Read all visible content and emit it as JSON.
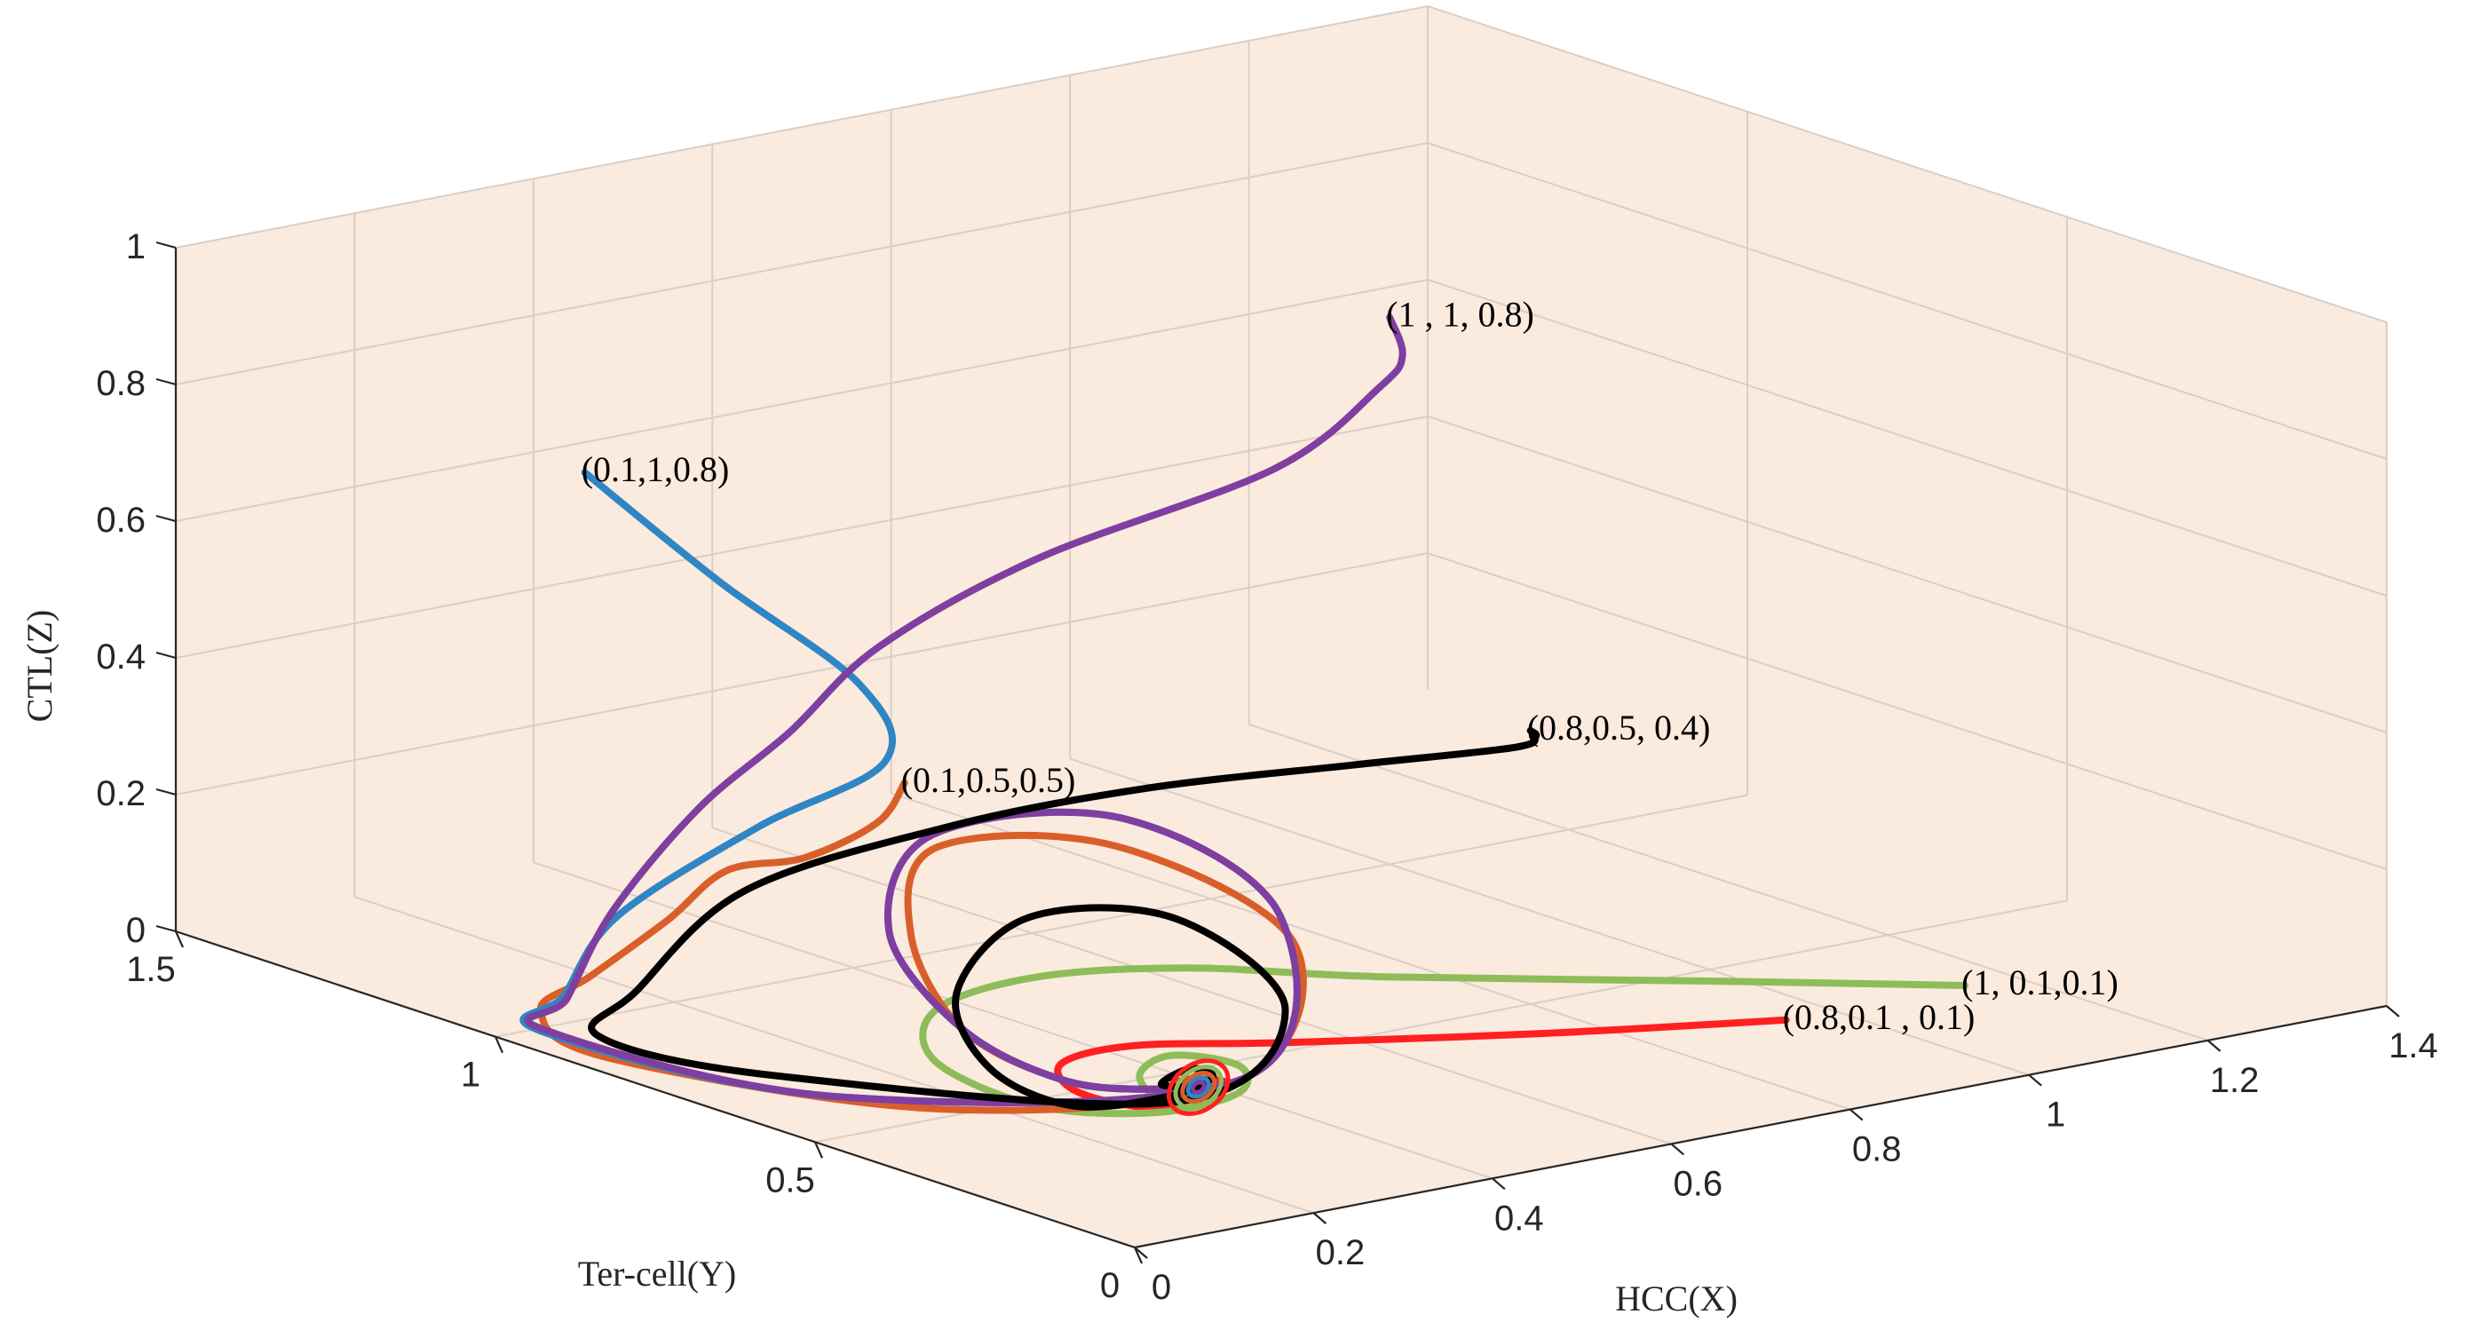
{
  "chart_data": {
    "type": "line",
    "subtype": "3d-phase-trajectories",
    "view": "3d-box",
    "title": "",
    "xlabel": "HCC(X)",
    "ylabel": "Ter-cell(Y)",
    "zlabel": "CTL(Z)",
    "xlim": [
      0,
      1.4
    ],
    "ylim": [
      0,
      1.5
    ],
    "zlim": [
      0,
      1
    ],
    "xticks": [
      0,
      0.2,
      0.4,
      0.6,
      0.8,
      1,
      1.2,
      1.4
    ],
    "xtick_labels": [
      "0",
      "0.2",
      "0.4",
      "0.6",
      "0.8",
      "1",
      "1.2",
      "1.4"
    ],
    "yticks": [
      0,
      0.5,
      1,
      1.5
    ],
    "ytick_labels": [
      "0",
      "0.5",
      "1",
      "1.5"
    ],
    "zticks": [
      0,
      0.2,
      0.4,
      0.6,
      0.8,
      1
    ],
    "ztick_labels": [
      "0",
      "0.2",
      "0.4",
      "0.6",
      "0.8",
      "1"
    ],
    "grid": true,
    "background": "#fbeade",
    "equilibrium": {
      "x": 0.3,
      "y": 0.32,
      "z": 0.06
    },
    "series": [
      {
        "name": "(0.8,0.1 , 0.1)",
        "color": "#ff2020",
        "initial": [
          0.8,
          0.1,
          0.1
        ],
        "points": [
          [
            0.8,
            0.1,
            0.1
          ],
          [
            0.6,
            0.2,
            0.1
          ],
          [
            0.4,
            0.32,
            0.1
          ],
          [
            0.3,
            0.42,
            0.09
          ],
          [
            0.24,
            0.45,
            0.07
          ],
          [
            0.22,
            0.4,
            0.05
          ],
          [
            0.25,
            0.33,
            0.04
          ],
          [
            0.3,
            0.3,
            0.05
          ],
          [
            0.33,
            0.32,
            0.06
          ],
          [
            0.31,
            0.35,
            0.06
          ],
          [
            0.29,
            0.34,
            0.06
          ],
          [
            0.3,
            0.32,
            0.06
          ]
        ]
      },
      {
        "name": "(1, 0.1,0.1)",
        "color": "#8fbc5a",
        "initial": [
          1,
          0.1,
          0.1
        ],
        "points": [
          [
            1,
            0.1,
            0.1
          ],
          [
            0.8,
            0.22,
            0.12
          ],
          [
            0.55,
            0.38,
            0.14
          ],
          [
            0.4,
            0.48,
            0.16
          ],
          [
            0.3,
            0.58,
            0.14
          ],
          [
            0.22,
            0.62,
            0.1
          ],
          [
            0.17,
            0.55,
            0.06
          ],
          [
            0.19,
            0.42,
            0.03
          ],
          [
            0.26,
            0.33,
            0.03
          ],
          [
            0.33,
            0.3,
            0.05
          ],
          [
            0.36,
            0.34,
            0.07
          ],
          [
            0.32,
            0.39,
            0.08
          ],
          [
            0.27,
            0.37,
            0.07
          ],
          [
            0.26,
            0.32,
            0.05
          ],
          [
            0.3,
            0.3,
            0.05
          ],
          [
            0.32,
            0.33,
            0.06
          ],
          [
            0.3,
            0.32,
            0.06
          ]
        ]
      },
      {
        "name": "(0.1,0.5,0.5)",
        "color": "#d95f2a",
        "initial": [
          0.1,
          0.5,
          0.5
        ],
        "points": [
          [
            0.1,
            0.5,
            0.5
          ],
          [
            0.07,
            0.5,
            0.45
          ],
          [
            0.06,
            0.6,
            0.37
          ],
          [
            0.08,
            0.75,
            0.3
          ],
          [
            0.05,
            0.8,
            0.22
          ],
          [
            0.02,
            0.88,
            0.12
          ],
          [
            0.015,
            0.95,
            0.05
          ],
          [
            0.02,
            0.85,
            0.01
          ],
          [
            0.15,
            0.5,
            0.01
          ],
          [
            0.35,
            0.32,
            0.06
          ],
          [
            0.5,
            0.45,
            0.18
          ],
          [
            0.48,
            0.7,
            0.25
          ],
          [
            0.35,
            0.8,
            0.25
          ],
          [
            0.25,
            0.7,
            0.18
          ],
          [
            0.2,
            0.55,
            0.1
          ],
          [
            0.22,
            0.42,
            0.06
          ],
          [
            0.28,
            0.36,
            0.05
          ],
          [
            0.32,
            0.34,
            0.06
          ],
          [
            0.3,
            0.32,
            0.06
          ]
        ]
      },
      {
        "name": "(0.1,1,0.8)",
        "color": "#2f86c4",
        "initial": [
          0.1,
          1,
          0.8
        ],
        "points": [
          [
            0.1,
            1,
            0.8
          ],
          [
            0.18,
            0.9,
            0.65
          ],
          [
            0.25,
            0.78,
            0.52
          ],
          [
            0.25,
            0.74,
            0.42
          ],
          [
            0.15,
            0.8,
            0.33
          ],
          [
            0.05,
            0.88,
            0.2
          ],
          [
            0.02,
            0.92,
            0.08
          ],
          [
            0.015,
            0.95,
            0.02
          ],
          [
            0.1,
            0.6,
            0.01
          ],
          [
            0.35,
            0.32,
            0.06
          ],
          [
            0.52,
            0.5,
            0.2
          ],
          [
            0.5,
            0.72,
            0.28
          ],
          [
            0.36,
            0.82,
            0.26
          ],
          [
            0.24,
            0.72,
            0.18
          ],
          [
            0.2,
            0.55,
            0.1
          ],
          [
            0.22,
            0.42,
            0.06
          ],
          [
            0.28,
            0.36,
            0.05
          ],
          [
            0.32,
            0.34,
            0.06
          ],
          [
            0.3,
            0.32,
            0.06
          ]
        ]
      },
      {
        "name": "(1 , 1, 0.8)",
        "color": "#7e3fa0",
        "initial": [
          1,
          1,
          0.8
        ],
        "points": [
          [
            1,
            1,
            0.8
          ],
          [
            1.0,
            0.98,
            0.75
          ],
          [
            0.96,
            0.96,
            0.72
          ],
          [
            0.8,
            0.9,
            0.66
          ],
          [
            0.5,
            0.85,
            0.62
          ],
          [
            0.3,
            0.82,
            0.55
          ],
          [
            0.2,
            0.82,
            0.45
          ],
          [
            0.12,
            0.85,
            0.35
          ],
          [
            0.06,
            0.9,
            0.2
          ],
          [
            0.03,
            0.93,
            0.07
          ],
          [
            0.02,
            0.95,
            0.02
          ],
          [
            0.1,
            0.6,
            0.01
          ],
          [
            0.35,
            0.32,
            0.06
          ],
          [
            0.52,
            0.5,
            0.2
          ],
          [
            0.5,
            0.72,
            0.28
          ],
          [
            0.36,
            0.82,
            0.26
          ],
          [
            0.24,
            0.72,
            0.18
          ],
          [
            0.2,
            0.55,
            0.1
          ],
          [
            0.22,
            0.42,
            0.06
          ],
          [
            0.28,
            0.36,
            0.05
          ],
          [
            0.32,
            0.34,
            0.06
          ],
          [
            0.3,
            0.32,
            0.06
          ]
        ]
      },
      {
        "name": "(0.8,0.5, 0.4)",
        "color": "#000000",
        "initial": [
          0.8,
          0.5,
          0.4
        ],
        "points": [
          [
            0.8,
            0.5,
            0.4
          ],
          [
            0.82,
            0.52,
            0.38
          ],
          [
            0.78,
            0.5,
            0.38
          ],
          [
            0.6,
            0.5,
            0.4
          ],
          [
            0.4,
            0.55,
            0.4
          ],
          [
            0.25,
            0.65,
            0.35
          ],
          [
            0.12,
            0.78,
            0.25
          ],
          [
            0.05,
            0.85,
            0.1
          ],
          [
            0.03,
            0.88,
            0.03
          ],
          [
            0.1,
            0.7,
            0.01
          ],
          [
            0.3,
            0.35,
            0.03
          ],
          [
            0.44,
            0.38,
            0.12
          ],
          [
            0.44,
            0.55,
            0.2
          ],
          [
            0.34,
            0.64,
            0.2
          ],
          [
            0.23,
            0.6,
            0.13
          ],
          [
            0.18,
            0.48,
            0.07
          ],
          [
            0.2,
            0.38,
            0.04
          ],
          [
            0.27,
            0.33,
            0.05
          ],
          [
            0.33,
            0.34,
            0.06
          ],
          [
            0.32,
            0.36,
            0.07
          ],
          [
            0.28,
            0.35,
            0.06
          ],
          [
            0.3,
            0.32,
            0.06
          ]
        ]
      }
    ],
    "annotations": [
      {
        "text": "(1 , 1, 0.8)",
        "at": [
          1,
          1,
          0.8
        ]
      },
      {
        "text": "(0.1,1,0.8)",
        "at": [
          0.1,
          1,
          0.8
        ]
      },
      {
        "text": "(0.8,0.5, 0.4)",
        "at": [
          0.8,
          0.5,
          0.4
        ]
      },
      {
        "text": "(0.1,0.5,0.5)",
        "at": [
          0.1,
          0.5,
          0.5
        ]
      },
      {
        "text": "(1, 0.1,0.1)",
        "at": [
          1,
          0.1,
          0.1
        ]
      },
      {
        "text": "(0.8,0.1 , 0.1)",
        "at": [
          0.8,
          0.1,
          0.1
        ]
      }
    ]
  }
}
